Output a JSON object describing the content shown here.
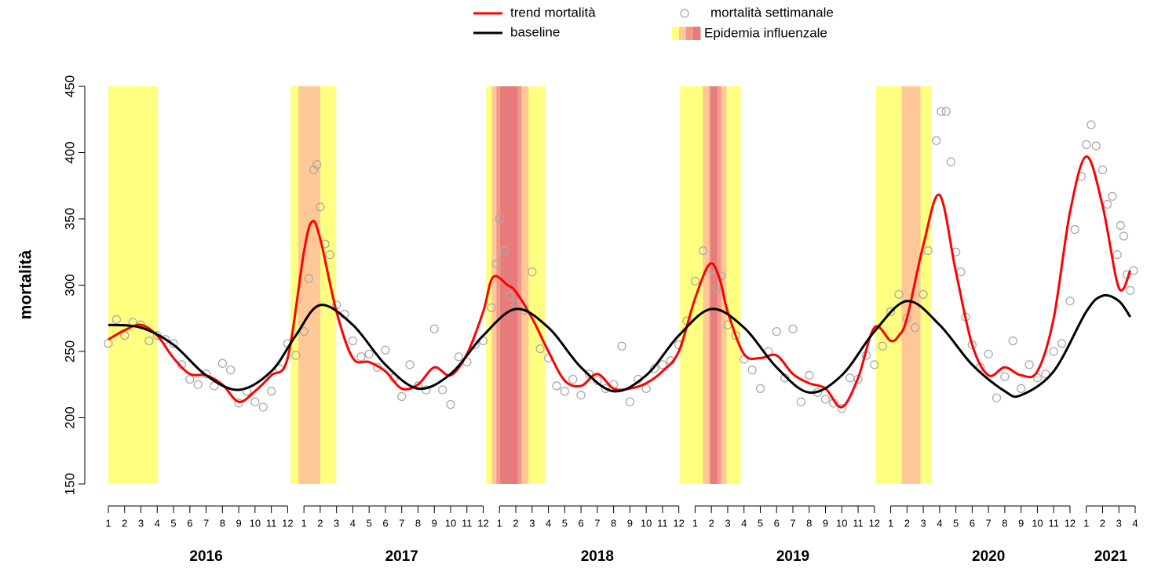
{
  "chart_data": {
    "type": "line",
    "ylabel": "mortalità",
    "ylim": [
      150,
      450
    ],
    "yticks": [
      150,
      200,
      250,
      300,
      350,
      400,
      450
    ],
    "xlim": [
      0,
      63
    ],
    "xticks": [
      {
        "value": 0,
        "label": "1"
      },
      {
        "value": 1,
        "label": "2"
      },
      {
        "value": 2,
        "label": "3"
      },
      {
        "value": 3,
        "label": "4"
      },
      {
        "value": 4,
        "label": "5"
      },
      {
        "value": 5,
        "label": "6"
      },
      {
        "value": 6,
        "label": "7"
      },
      {
        "value": 7,
        "label": "8"
      },
      {
        "value": 8,
        "label": "9"
      },
      {
        "value": 9,
        "label": "10"
      },
      {
        "value": 10,
        "label": "11"
      },
      {
        "value": 11,
        "label": "12"
      },
      {
        "value": 12,
        "label": "1"
      },
      {
        "value": 13,
        "label": "2"
      },
      {
        "value": 14,
        "label": "3"
      },
      {
        "value": 15,
        "label": "4"
      },
      {
        "value": 16,
        "label": "5"
      },
      {
        "value": 17,
        "label": "6"
      },
      {
        "value": 18,
        "label": "7"
      },
      {
        "value": 19,
        "label": "8"
      },
      {
        "value": 20,
        "label": "9"
      },
      {
        "value": 21,
        "label": "10"
      },
      {
        "value": 22,
        "label": "11"
      },
      {
        "value": 23,
        "label": "12"
      },
      {
        "value": 24,
        "label": "1"
      },
      {
        "value": 25,
        "label": "2"
      },
      {
        "value": 26,
        "label": "3"
      },
      {
        "value": 27,
        "label": "4"
      },
      {
        "value": 28,
        "label": "5"
      },
      {
        "value": 29,
        "label": "6"
      },
      {
        "value": 30,
        "label": "7"
      },
      {
        "value": 31,
        "label": "8"
      },
      {
        "value": 32,
        "label": "9"
      },
      {
        "value": 33,
        "label": "10"
      },
      {
        "value": 34,
        "label": "11"
      },
      {
        "value": 35,
        "label": "12"
      },
      {
        "value": 36,
        "label": "1"
      },
      {
        "value": 37,
        "label": "2"
      },
      {
        "value": 38,
        "label": "3"
      },
      {
        "value": 39,
        "label": "4"
      },
      {
        "value": 40,
        "label": "5"
      },
      {
        "value": 41,
        "label": "6"
      },
      {
        "value": 42,
        "label": "7"
      },
      {
        "value": 43,
        "label": "8"
      },
      {
        "value": 44,
        "label": "9"
      },
      {
        "value": 45,
        "label": "10"
      },
      {
        "value": 46,
        "label": "11"
      },
      {
        "value": 47,
        "label": "12"
      },
      {
        "value": 48,
        "label": "1"
      },
      {
        "value": 49,
        "label": "2"
      },
      {
        "value": 50,
        "label": "3"
      },
      {
        "value": 51,
        "label": "4"
      },
      {
        "value": 52,
        "label": "5"
      },
      {
        "value": 53,
        "label": "6"
      },
      {
        "value": 54,
        "label": "7"
      },
      {
        "value": 55,
        "label": "8"
      },
      {
        "value": 56,
        "label": "9"
      },
      {
        "value": 57,
        "label": "10"
      },
      {
        "value": 58,
        "label": "11"
      },
      {
        "value": 59,
        "label": "12"
      },
      {
        "value": 60,
        "label": "1"
      },
      {
        "value": 61,
        "label": "2"
      },
      {
        "value": 62,
        "label": "3"
      },
      {
        "value": 63,
        "label": "4"
      }
    ],
    "years": [
      "2016",
      "2017",
      "2018",
      "2019",
      "2020",
      "2021"
    ],
    "series": [
      {
        "name": "trend mortalità",
        "color": "#ff0000",
        "x": [
          0,
          1,
          2,
          3,
          4,
          5,
          6,
          7,
          8,
          9,
          10,
          11,
          12,
          12.5,
          13,
          14,
          15,
          16,
          17,
          18,
          19,
          20,
          21,
          22,
          23,
          23.6,
          24.5,
          25,
          26,
          27,
          28,
          29,
          30,
          31,
          32,
          33,
          34,
          35,
          36,
          36.9,
          37.5,
          38,
          39,
          40,
          41,
          42,
          43,
          44,
          45,
          46,
          47,
          48,
          48.5,
          49,
          50,
          51,
          52,
          53,
          54,
          55,
          56,
          57,
          58,
          59,
          60,
          61,
          62,
          62.7
        ],
        "values": [
          259,
          266,
          270,
          262,
          245,
          233,
          232,
          225,
          212,
          220,
          232,
          245,
          325,
          348,
          335,
          280,
          245,
          242,
          235,
          222,
          225,
          238,
          232,
          248,
          280,
          306,
          300,
          295,
          275,
          250,
          228,
          224,
          233,
          222,
          222,
          226,
          235,
          250,
          290,
          316,
          305,
          280,
          248,
          245,
          247,
          233,
          226,
          222,
          208,
          230,
          268,
          258,
          262,
          275,
          330,
          368,
          310,
          255,
          232,
          238,
          232,
          235,
          275,
          355,
          397,
          360,
          298,
          311
        ]
      },
      {
        "name": "baseline",
        "color": "#000000",
        "x": [
          0,
          2,
          4,
          6,
          8,
          10,
          11.5,
          13,
          15,
          17,
          19,
          21,
          23,
          25,
          27,
          29,
          31,
          33,
          35,
          37,
          39,
          41,
          43,
          45,
          47,
          49,
          51,
          53,
          55,
          56,
          58,
          60,
          61,
          62,
          62.7
        ],
        "values": [
          270,
          268,
          255,
          232,
          221,
          235,
          262,
          285,
          270,
          240,
          222,
          233,
          262,
          282,
          268,
          238,
          220,
          232,
          262,
          282,
          268,
          238,
          219,
          232,
          265,
          288,
          270,
          240,
          220,
          217,
          235,
          280,
          292,
          288,
          276
        ]
      },
      {
        "name": "mortalità settimanale",
        "type": "scatter",
        "color": "#aaaaaa",
        "x": [
          0,
          0.5,
          1,
          1.5,
          2,
          2.5,
          3,
          3.5,
          4,
          4.5,
          5,
          5.5,
          6,
          6.5,
          7,
          7.5,
          8,
          8.5,
          9,
          9.5,
          10,
          10.5,
          11,
          11.5,
          12,
          12.3,
          12.6,
          12.8,
          13,
          13.3,
          13.6,
          14,
          14.5,
          15,
          15.5,
          16,
          16.5,
          17,
          17.5,
          18,
          18.5,
          19,
          19.5,
          20,
          20.5,
          21,
          21.5,
          22,
          22.5,
          23,
          23.5,
          23.8,
          24,
          24.3,
          24.6,
          25,
          25.5,
          26,
          26.5,
          27,
          27.5,
          28,
          28.5,
          29,
          29.5,
          30,
          30.5,
          31,
          31.5,
          32,
          32.5,
          33,
          33.5,
          34,
          34.5,
          35,
          35.5,
          36,
          36.5,
          37,
          37.3,
          37.6,
          38,
          38.5,
          39,
          39.5,
          40,
          40.5,
          41,
          41.5,
          42,
          42.5,
          43,
          43.5,
          44,
          44.5,
          45,
          45.5,
          46,
          46.5,
          47,
          47.5,
          48,
          48.5,
          49,
          49.5,
          50,
          50.3,
          50.8,
          51.1,
          51.4,
          51.7,
          52,
          52.3,
          52.6,
          53,
          53.5,
          54,
          54.5,
          55,
          55.5,
          56,
          56.5,
          57,
          57.5,
          58,
          58.5,
          59,
          59.3,
          59.7,
          60,
          60.3,
          60.6,
          61,
          61.3,
          61.6,
          61.9,
          62.1,
          62.3,
          62.5,
          62.7,
          62.9
        ],
        "values": [
          256,
          274,
          262,
          272,
          270,
          258,
          262,
          259,
          256,
          240,
          229,
          225,
          233,
          224,
          241,
          236,
          211,
          220,
          212,
          208,
          220,
          237,
          256,
          247,
          265,
          305,
          387,
          391,
          359,
          331,
          323,
          285,
          278,
          258,
          246,
          248,
          238,
          251,
          230,
          216,
          240,
          224,
          221,
          267,
          221,
          210,
          246,
          242,
          255,
          258,
          283,
          316,
          350,
          326,
          292,
          285,
          281,
          310,
          252,
          245,
          224,
          220,
          229,
          217,
          233,
          228,
          222,
          225,
          254,
          212,
          229,
          222,
          237,
          240,
          243,
          255,
          273,
          303,
          326,
          312,
          298,
          307,
          270,
          262,
          244,
          236,
          222,
          250,
          265,
          230,
          267,
          212,
          232,
          219,
          214,
          211,
          207,
          230,
          229,
          247,
          240,
          254,
          280,
          293,
          275,
          268,
          293,
          326,
          409,
          431,
          431,
          393,
          325,
          310,
          276,
          255,
          238,
          248,
          215,
          231,
          258,
          222,
          240,
          230,
          233,
          250,
          256,
          288,
          342,
          382,
          406,
          421,
          405,
          387,
          361,
          367,
          323,
          345,
          337,
          308,
          296,
          311
        ]
      }
    ],
    "bands": {
      "name": "Epidemia influenzale",
      "colors": [
        "#ffff80",
        "#ffc896",
        "#f3968c",
        "#e67c7c"
      ],
      "items": [
        {
          "level": 0,
          "x": [
            0,
            3.04
          ]
        },
        {
          "level": 0,
          "x": [
            11.18,
            13.98
          ]
        },
        {
          "level": 1,
          "x": [
            11.66,
            13.01
          ]
        },
        {
          "level": 0,
          "x": [
            23.18,
            26.8
          ]
        },
        {
          "level": 1,
          "x": [
            23.52,
            25.78
          ]
        },
        {
          "level": 2,
          "x": [
            23.81,
            25.35
          ]
        },
        {
          "level": 3,
          "x": [
            24.05,
            25.11
          ]
        },
        {
          "level": 0,
          "x": [
            35.08,
            38.8
          ]
        },
        {
          "level": 1,
          "x": [
            36.48,
            37.93
          ]
        },
        {
          "level": 2,
          "x": [
            36.87,
            37.59
          ]
        },
        {
          "level": 3,
          "x": [
            36.96,
            37.35
          ]
        },
        {
          "level": 0,
          "x": [
            47.08,
            50.5
          ]
        },
        {
          "level": 1,
          "x": [
            48.67,
            49.83
          ]
        }
      ]
    }
  }
}
